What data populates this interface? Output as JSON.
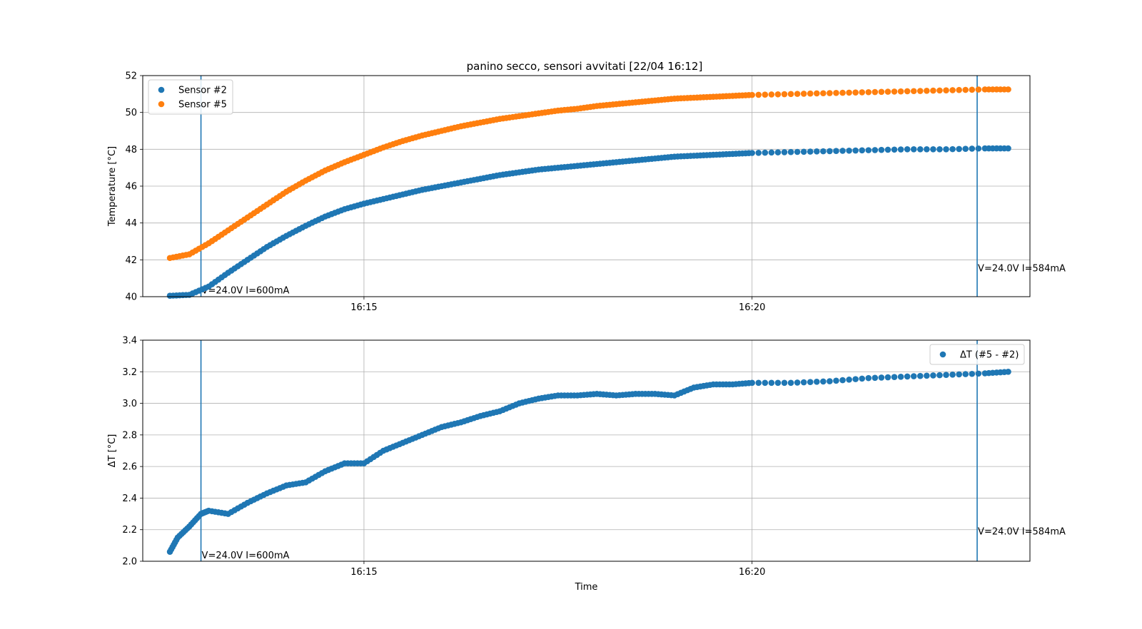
{
  "colors": {
    "sensor2": "#1f77b4",
    "sensor5": "#ff7f0e",
    "delta": "#1f77b4",
    "event_line": "#1f77b4",
    "grid": "#b0b0b0"
  },
  "chart_data": [
    {
      "type": "scatter",
      "title": "panino secco, sensori avvitati [22/04 16:12]",
      "xlabel": "",
      "ylabel": "Temperature [°C]",
      "x_unit": "minutes",
      "x_ticks": [
        {
          "value": 15,
          "label": "16:15"
        },
        {
          "value": 20,
          "label": "16:20"
        }
      ],
      "xlim": [
        12.15,
        23.58
      ],
      "ylim": [
        40,
        52
      ],
      "y_ticks": [
        40,
        42,
        44,
        46,
        48,
        50,
        52
      ],
      "grid": true,
      "legend": "upper-left",
      "series": [
        {
          "name": "Sensor #2",
          "color": "#1f77b4",
          "x": [
            12.5,
            12.75,
            13.0,
            13.25,
            13.5,
            13.75,
            14.0,
            14.25,
            14.5,
            14.75,
            15.0,
            15.25,
            15.5,
            15.75,
            16.0,
            16.25,
            16.5,
            16.75,
            17.0,
            17.25,
            17.5,
            17.75,
            18.0,
            18.25,
            18.5,
            18.75,
            19.0,
            19.25,
            19.5,
            19.75,
            20.0,
            20.5,
            21.0,
            21.5,
            22.0,
            22.5,
            23.0,
            23.3
          ],
          "y": [
            40.05,
            40.1,
            40.55,
            41.3,
            42.0,
            42.7,
            43.3,
            43.85,
            44.35,
            44.75,
            45.05,
            45.3,
            45.55,
            45.8,
            46.0,
            46.2,
            46.4,
            46.6,
            46.75,
            46.9,
            47.0,
            47.1,
            47.2,
            47.3,
            47.4,
            47.5,
            47.6,
            47.65,
            47.7,
            47.75,
            47.8,
            47.85,
            47.9,
            47.95,
            48.0,
            48.0,
            48.05,
            48.05
          ]
        },
        {
          "name": "Sensor #5",
          "color": "#ff7f0e",
          "x": [
            12.5,
            12.75,
            13.0,
            13.25,
            13.5,
            13.75,
            14.0,
            14.25,
            14.5,
            14.75,
            15.0,
            15.25,
            15.5,
            15.75,
            16.0,
            16.25,
            16.5,
            16.75,
            17.0,
            17.25,
            17.5,
            17.75,
            18.0,
            18.25,
            18.5,
            18.75,
            19.0,
            19.25,
            19.5,
            19.75,
            20.0,
            20.5,
            21.0,
            21.5,
            22.0,
            22.5,
            23.0,
            23.3
          ],
          "y": [
            42.1,
            42.3,
            42.9,
            43.6,
            44.3,
            45.0,
            45.7,
            46.3,
            46.85,
            47.3,
            47.7,
            48.1,
            48.45,
            48.75,
            49.0,
            49.25,
            49.45,
            49.65,
            49.8,
            49.95,
            50.1,
            50.2,
            50.35,
            50.45,
            50.55,
            50.65,
            50.75,
            50.8,
            50.85,
            50.9,
            50.95,
            51.0,
            51.05,
            51.1,
            51.15,
            51.2,
            51.25,
            51.25
          ]
        }
      ],
      "annotations": [
        {
          "x": 12.9,
          "label": "V=24.0V I=600mA",
          "label_y": 40.1
        },
        {
          "x": 22.9,
          "label": "V=24.0V I=584mA",
          "label_y": 41.3
        }
      ]
    },
    {
      "type": "scatter",
      "title": "",
      "xlabel": "Time",
      "ylabel": "ΔT [°C]",
      "x_unit": "minutes",
      "x_ticks": [
        {
          "value": 15,
          "label": "16:15"
        },
        {
          "value": 20,
          "label": "16:20"
        }
      ],
      "xlim": [
        12.15,
        23.58
      ],
      "ylim": [
        2.0,
        3.4
      ],
      "y_ticks": [
        "2.0",
        "2.2",
        "2.4",
        "2.6",
        "2.8",
        "3.0",
        "3.2",
        "3.4"
      ],
      "grid": true,
      "legend": "upper-right",
      "series": [
        {
          "name": "ΔT (#5 - #2)",
          "color": "#1f77b4",
          "x": [
            12.5,
            12.6,
            12.75,
            12.9,
            13.0,
            13.25,
            13.5,
            13.75,
            14.0,
            14.25,
            14.5,
            14.75,
            15.0,
            15.25,
            15.5,
            15.75,
            16.0,
            16.25,
            16.5,
            16.75,
            17.0,
            17.25,
            17.5,
            17.75,
            18.0,
            18.25,
            18.5,
            18.75,
            19.0,
            19.25,
            19.5,
            19.75,
            20.0,
            20.5,
            21.0,
            21.5,
            22.0,
            22.5,
            23.0,
            23.3
          ],
          "y": [
            2.06,
            2.15,
            2.22,
            2.3,
            2.32,
            2.3,
            2.37,
            2.43,
            2.48,
            2.5,
            2.57,
            2.62,
            2.62,
            2.7,
            2.75,
            2.8,
            2.85,
            2.88,
            2.92,
            2.95,
            3.0,
            3.03,
            3.05,
            3.05,
            3.06,
            3.05,
            3.06,
            3.06,
            3.05,
            3.1,
            3.12,
            3.12,
            3.13,
            3.13,
            3.14,
            3.16,
            3.17,
            3.18,
            3.19,
            3.2
          ]
        }
      ],
      "annotations": [
        {
          "x": 12.9,
          "label": "V=24.0V I=600mA",
          "label_y": 2.01
        },
        {
          "x": 22.9,
          "label": "V=24.0V I=584mA",
          "label_y": 2.16
        }
      ]
    }
  ]
}
